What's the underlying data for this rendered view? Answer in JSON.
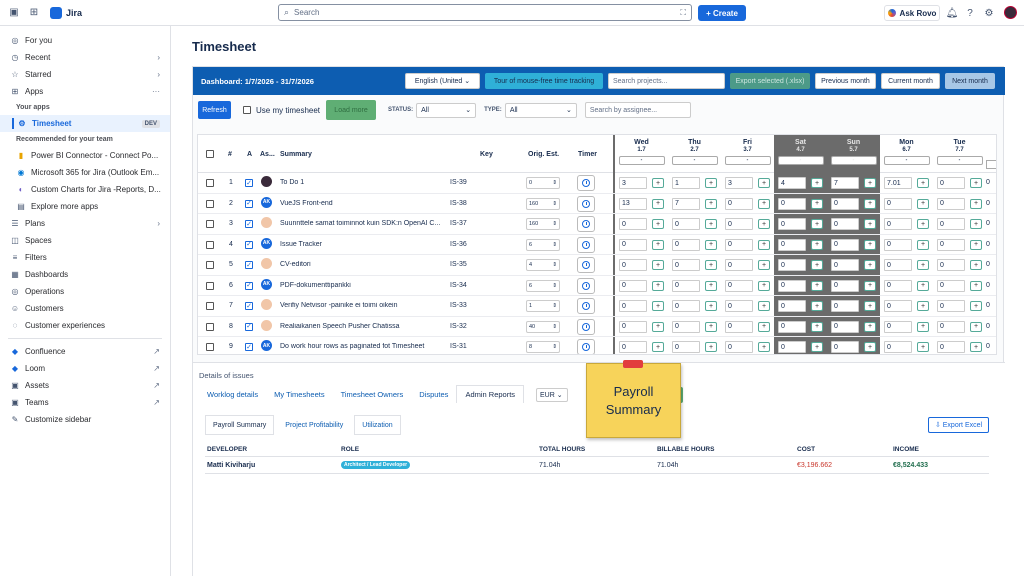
{
  "topbar": {
    "app_name": "Jira",
    "search_placeholder": "Search",
    "create_label": "Create",
    "ask_rovo_label": "Ask Rovo"
  },
  "sidebar": {
    "items_top": [
      {
        "label": "For you",
        "icon": "user-circle-icon"
      },
      {
        "label": "Recent",
        "icon": "clock-icon",
        "chevron": "›"
      },
      {
        "label": "Starred",
        "icon": "star-icon",
        "chevron": "›"
      },
      {
        "label": "Apps",
        "icon": "apps-icon",
        "chevron": "···"
      }
    ],
    "your_apps_heading": "Your apps",
    "timesheet": {
      "label": "Timesheet",
      "badge": "DEV"
    },
    "recommended_heading": "Recommended for your team",
    "recommended": [
      {
        "label": "Power BI Connector - Connect Po..."
      },
      {
        "label": "Microsoft 365 for Jira (Outlook Em..."
      },
      {
        "label": "Custom Charts for Jira -Reports, D..."
      },
      {
        "label": "Explore more apps"
      }
    ],
    "items_mid": [
      {
        "label": "Plans",
        "icon": "plans-icon",
        "chevron": "›"
      },
      {
        "label": "Spaces",
        "icon": "spaces-icon"
      },
      {
        "label": "Filters",
        "icon": "filter-icon"
      },
      {
        "label": "Dashboards",
        "icon": "dashboard-icon"
      },
      {
        "label": "Operations",
        "icon": "operations-icon"
      },
      {
        "label": "Customers",
        "icon": "customers-icon"
      },
      {
        "label": "Customer experiences",
        "icon": "cx-icon"
      }
    ],
    "external": [
      {
        "label": "Confluence"
      },
      {
        "label": "Loom"
      },
      {
        "label": "Assets"
      },
      {
        "label": "Teams"
      }
    ],
    "customize": "Customize sidebar"
  },
  "page": {
    "title": "Timesheet"
  },
  "dashbar": {
    "title": "Dashboard: 1/7/2026 - 31/7/2026",
    "language": "English (United",
    "tour": "Tour of mouse-free time tracking",
    "search_projects": "Search projects...",
    "export": "Export selected (.xlsx)",
    "prev": "Previous month",
    "current": "Current month",
    "next": "Next month"
  },
  "controls": {
    "refresh": "Refresh",
    "use_my_timesheet": "Use my timesheet",
    "load_more": "Load more",
    "status_label": "STATUS:",
    "status_value": "All",
    "type_label": "TYPE:",
    "type_value": "All",
    "assignee_placeholder": "Search by assignee..."
  },
  "grid": {
    "headers": {
      "num": "#",
      "a": "A",
      "as": "As...",
      "summary": "Summary",
      "key": "Key",
      "orig": "Orig. Est.",
      "timer": "Timer"
    },
    "days": [
      {
        "day": "Wed",
        "date": "1.7",
        "weekend": false
      },
      {
        "day": "Thu",
        "date": "2.7",
        "weekend": false
      },
      {
        "day": "Fri",
        "date": "3.7",
        "weekend": false
      },
      {
        "day": "Sat",
        "date": "4.7",
        "weekend": true
      },
      {
        "day": "Sun",
        "date": "5.7",
        "weekend": true
      },
      {
        "day": "Mon",
        "date": "6.7",
        "weekend": false
      },
      {
        "day": "Tue",
        "date": "7.7",
        "weekend": false
      }
    ],
    "rows": [
      {
        "n": "1",
        "av": "dk",
        "summary": "To Do 1",
        "key": "IS-39",
        "est": "0",
        "h": [
          "3",
          "1",
          "3",
          "4",
          "7",
          "7.01",
          "0"
        ]
      },
      {
        "n": "2",
        "av": "ak",
        "summary": "VueJS Front-end",
        "key": "IS-38",
        "est": "160",
        "h": [
          "13",
          "7",
          "0",
          "0",
          "0",
          "0",
          "0"
        ]
      },
      {
        "n": "3",
        "av": "ph",
        "summary": "Suunnttele samat toiminnot kuin SDK:n OpenAI C...",
        "key": "IS-37",
        "est": "160",
        "h": [
          "0",
          "0",
          "0",
          "0",
          "0",
          "0",
          "0"
        ]
      },
      {
        "n": "4",
        "av": "ak",
        "summary": "Issue Tracker",
        "key": "IS-36",
        "est": "6",
        "h": [
          "0",
          "0",
          "0",
          "0",
          "0",
          "0",
          "0"
        ]
      },
      {
        "n": "5",
        "av": "ph",
        "summary": "CV-editori",
        "key": "IS-35",
        "est": "4",
        "h": [
          "0",
          "0",
          "0",
          "0",
          "0",
          "0",
          "0"
        ]
      },
      {
        "n": "6",
        "av": "ak",
        "summary": "PDF-dokumenttipankki",
        "key": "IS-34",
        "est": "6",
        "h": [
          "0",
          "0",
          "0",
          "0",
          "0",
          "0",
          "0"
        ]
      },
      {
        "n": "7",
        "av": "ph",
        "summary": "Verifiy Netvisor -painike ei toimi oikein",
        "key": "IS-33",
        "est": "1",
        "h": [
          "0",
          "0",
          "0",
          "0",
          "0",
          "0",
          "0"
        ]
      },
      {
        "n": "8",
        "av": "ph",
        "summary": "Realiaikanen Speech Pusher Chatissa",
        "key": "IS-32",
        "est": "40",
        "h": [
          "0",
          "0",
          "0",
          "0",
          "0",
          "0",
          "0"
        ]
      },
      {
        "n": "9",
        "av": "ak",
        "summary": "Do work hour rows as paginated fot Timesheet",
        "key": "IS-31",
        "est": "8",
        "h": [
          "0",
          "0",
          "0",
          "0",
          "0",
          "0",
          "0"
        ]
      }
    ]
  },
  "details": {
    "title": "Details of issues",
    "tabs": [
      "Worklog details",
      "My Timesheets",
      "Timesheet Owners",
      "Disputes",
      "Admin Reports"
    ],
    "currency": "EUR",
    "green_btn": "orklog",
    "sticky_lines": [
      "Payroll",
      "Summary"
    ],
    "subtabs": [
      "Payroll Summary",
      "Project Profitability",
      "Utilization"
    ],
    "export_excel": "Export Excel",
    "report_headers": [
      "DEVELOPER",
      "ROLE",
      "TOTAL HOURS",
      "BILLABLE HOURS",
      "COST",
      "INCOME"
    ],
    "report_row": {
      "developer": "Matti Kiviharju",
      "role": "Architect / Lead Developer",
      "total": "71.04h",
      "billable": "71.04h",
      "cost": "€3,196.662",
      "income": "€8,524.433"
    },
    "colors": {
      "cost": "#c9372c",
      "income": "#216e4e"
    }
  }
}
